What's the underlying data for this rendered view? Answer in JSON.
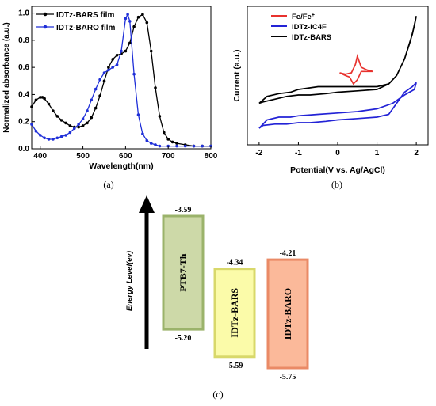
{
  "chart_data": [
    {
      "type": "line",
      "panel_label": "(a)",
      "xlabel": "Wavelength(nm)",
      "ylabel": "Normalized absorbance (a.u.)",
      "xlim": [
        380,
        800
      ],
      "ylim": [
        0.0,
        1.05
      ],
      "xticks": [
        "400",
        "500",
        "600",
        "700",
        "800"
      ],
      "yticks": [
        "0.0",
        "0.2",
        "0.4",
        "0.6",
        "0.8",
        "1.0"
      ],
      "legend_position": "top-left",
      "grid": false,
      "series": [
        {
          "name": "IDTz-BARS film",
          "color": "#000000",
          "x": [
            380,
            390,
            400,
            405,
            410,
            420,
            430,
            440,
            450,
            460,
            470,
            480,
            490,
            500,
            510,
            520,
            530,
            540,
            550,
            560,
            570,
            580,
            590,
            600,
            610,
            620,
            630,
            640,
            650,
            660,
            670,
            680,
            690,
            700,
            710,
            720,
            740,
            760,
            780,
            800
          ],
          "y": [
            0.31,
            0.36,
            0.38,
            0.38,
            0.37,
            0.33,
            0.28,
            0.24,
            0.21,
            0.19,
            0.17,
            0.16,
            0.16,
            0.17,
            0.19,
            0.23,
            0.3,
            0.39,
            0.5,
            0.6,
            0.66,
            0.69,
            0.7,
            0.72,
            0.78,
            0.9,
            0.97,
            0.99,
            0.93,
            0.72,
            0.45,
            0.24,
            0.12,
            0.07,
            0.05,
            0.04,
            0.03,
            0.02,
            0.02,
            0.02
          ]
        },
        {
          "name": "IDTz-BARO film",
          "color": "#1f2fd8",
          "x": [
            380,
            390,
            400,
            410,
            420,
            430,
            440,
            450,
            460,
            470,
            480,
            490,
            500,
            510,
            520,
            530,
            540,
            550,
            560,
            570,
            580,
            590,
            600,
            605,
            610,
            620,
            630,
            640,
            650,
            660,
            670,
            680,
            700,
            720,
            740,
            760,
            780,
            800
          ],
          "y": [
            0.18,
            0.13,
            0.1,
            0.08,
            0.07,
            0.07,
            0.08,
            0.09,
            0.1,
            0.12,
            0.15,
            0.18,
            0.22,
            0.28,
            0.36,
            0.44,
            0.51,
            0.56,
            0.58,
            0.6,
            0.62,
            0.72,
            0.96,
            0.99,
            0.94,
            0.55,
            0.25,
            0.11,
            0.06,
            0.04,
            0.03,
            0.02,
            0.02,
            0.02,
            0.02,
            0.02,
            0.02,
            0.02
          ]
        }
      ]
    },
    {
      "type": "line",
      "panel_label": "(b)",
      "xlabel": "Potential(V vs. Ag/AgCl)",
      "ylabel": "Current (a.u.)",
      "xlim": [
        -2.3,
        2.3
      ],
      "xticks": [
        "-2",
        "-1",
        "0",
        "1",
        "2"
      ],
      "legend_position": "top-left",
      "grid": false,
      "series": [
        {
          "name": "Fe/Fe",
          "name_superscript": "+",
          "color": "#e8322e",
          "x": [
            0.05,
            0.2,
            0.35,
            0.45,
            0.5,
            0.6,
            0.75,
            0.9,
            0.75,
            0.6,
            0.5,
            0.4,
            0.3,
            0.2,
            0.05
          ],
          "y": [
            0.52,
            0.51,
            0.52,
            0.58,
            0.64,
            0.56,
            0.54,
            0.53,
            0.53,
            0.53,
            0.47,
            0.44,
            0.49,
            0.5,
            0.52
          ]
        },
        {
          "name": "IDTz-IC4F",
          "color": "#2323d6",
          "x": [
            -2.0,
            -1.8,
            -1.5,
            -1.2,
            -1.0,
            -0.5,
            0,
            0.5,
            1.0,
            1.4,
            1.7,
            1.95,
            2.0,
            1.9,
            1.7,
            1.5,
            1.3,
            1.0,
            0.5,
            0,
            -0.3,
            -0.7,
            -1.0,
            -1.3,
            -1.6,
            -1.9,
            -2.0
          ],
          "y": [
            0.12,
            0.18,
            0.2,
            0.2,
            0.21,
            0.22,
            0.23,
            0.24,
            0.26,
            0.3,
            0.36,
            0.4,
            0.45,
            0.42,
            0.38,
            0.3,
            0.22,
            0.2,
            0.19,
            0.18,
            0.17,
            0.16,
            0.16,
            0.15,
            0.15,
            0.14,
            0.12
          ]
        },
        {
          "name": "IDTz-BARS",
          "color": "#000000",
          "x": [
            -2.0,
            -1.8,
            -1.5,
            -1.2,
            -1.0,
            -0.5,
            0,
            0.5,
            1.0,
            1.3,
            1.5,
            1.7,
            1.85,
            1.95,
            2.0,
            1.9,
            1.7,
            1.5,
            1.3,
            1.0,
            0.5,
            0,
            -0.3,
            -0.7,
            -1.0,
            -1.3,
            -1.6,
            -1.9,
            -2.0
          ],
          "y": [
            0.3,
            0.35,
            0.37,
            0.38,
            0.4,
            0.42,
            0.42,
            0.42,
            0.42,
            0.44,
            0.5,
            0.62,
            0.75,
            0.86,
            0.93,
            0.8,
            0.62,
            0.5,
            0.44,
            0.4,
            0.39,
            0.38,
            0.37,
            0.36,
            0.36,
            0.35,
            0.33,
            0.31,
            0.3
          ]
        }
      ]
    },
    {
      "type": "bar",
      "panel_label": "(c)",
      "ylabel": "Energy Level(ev)",
      "series": [
        {
          "name": "PTB7-Th",
          "lumo": -3.59,
          "homo": -5.2,
          "lumo_label": "-3.59",
          "homo_label": "-5.20",
          "fill": "#cdd9a8",
          "stroke": "#9bb36b"
        },
        {
          "name": "IDTz-BARS",
          "lumo": -4.34,
          "homo": -5.59,
          "lumo_label": "-4.34",
          "homo_label": "-5.59",
          "fill": "#fbfba9",
          "stroke": "#d8d86a"
        },
        {
          "name": "IDTz-BARO",
          "lumo": -4.21,
          "homo": -5.75,
          "lumo_label": "-4.21",
          "homo_label": "-5.75",
          "fill": "#fbb99a",
          "stroke": "#ea8a66"
        }
      ]
    }
  ]
}
